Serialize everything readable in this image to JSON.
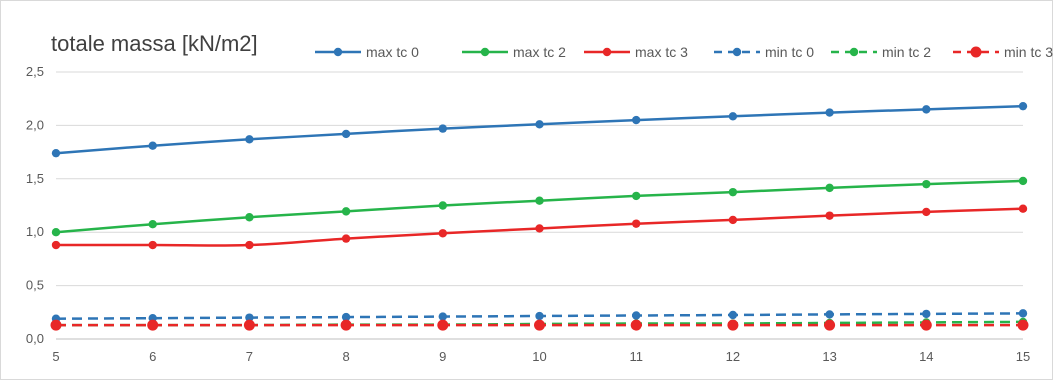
{
  "chart_data": {
    "type": "line",
    "title": "totale massa [kN/m2]",
    "xlabel": "",
    "ylabel": "",
    "x": [
      5,
      6,
      7,
      8,
      9,
      10,
      11,
      12,
      13,
      14,
      15
    ],
    "ylim": [
      0,
      2.5
    ],
    "yticks": [
      "0,0",
      "0,5",
      "1,0",
      "1,5",
      "2,0",
      "2,5"
    ],
    "xticks": [
      "5",
      "6",
      "7",
      "8",
      "9",
      "10",
      "11",
      "12",
      "13",
      "14",
      "15"
    ],
    "grid": true,
    "legend_position": "top-right",
    "series": [
      {
        "name": "max tc 0",
        "color": "#2E75B6",
        "dash": "solid",
        "values": [
          1.74,
          1.81,
          1.87,
          1.92,
          1.97,
          2.01,
          2.05,
          2.085,
          2.12,
          2.15,
          2.18
        ]
      },
      {
        "name": "max tc 2",
        "color": "#26B44A",
        "dash": "solid",
        "values": [
          1.0,
          1.075,
          1.14,
          1.195,
          1.25,
          1.295,
          1.34,
          1.375,
          1.415,
          1.45,
          1.48
        ]
      },
      {
        "name": "max tc 3",
        "color": "#E82727",
        "dash": "solid",
        "values": [
          0.88,
          0.88,
          0.88,
          0.94,
          0.99,
          1.035,
          1.08,
          1.115,
          1.155,
          1.19,
          1.22
        ]
      },
      {
        "name": "min tc 0",
        "color": "#2E75B6",
        "dash": "dashed",
        "values": [
          0.19,
          0.195,
          0.2,
          0.205,
          0.21,
          0.215,
          0.22,
          0.225,
          0.23,
          0.235,
          0.24
        ]
      },
      {
        "name": "min tc 2",
        "color": "#26B44A",
        "dash": "dashed",
        "values": [
          0.13,
          0.13,
          0.13,
          0.135,
          0.135,
          0.14,
          0.145,
          0.145,
          0.15,
          0.155,
          0.16
        ]
      },
      {
        "name": "min tc 3",
        "color": "#E82727",
        "dash": "dashed",
        "values": [
          0.13,
          0.13,
          0.13,
          0.13,
          0.13,
          0.13,
          0.13,
          0.13,
          0.13,
          0.13,
          0.13
        ]
      }
    ]
  }
}
